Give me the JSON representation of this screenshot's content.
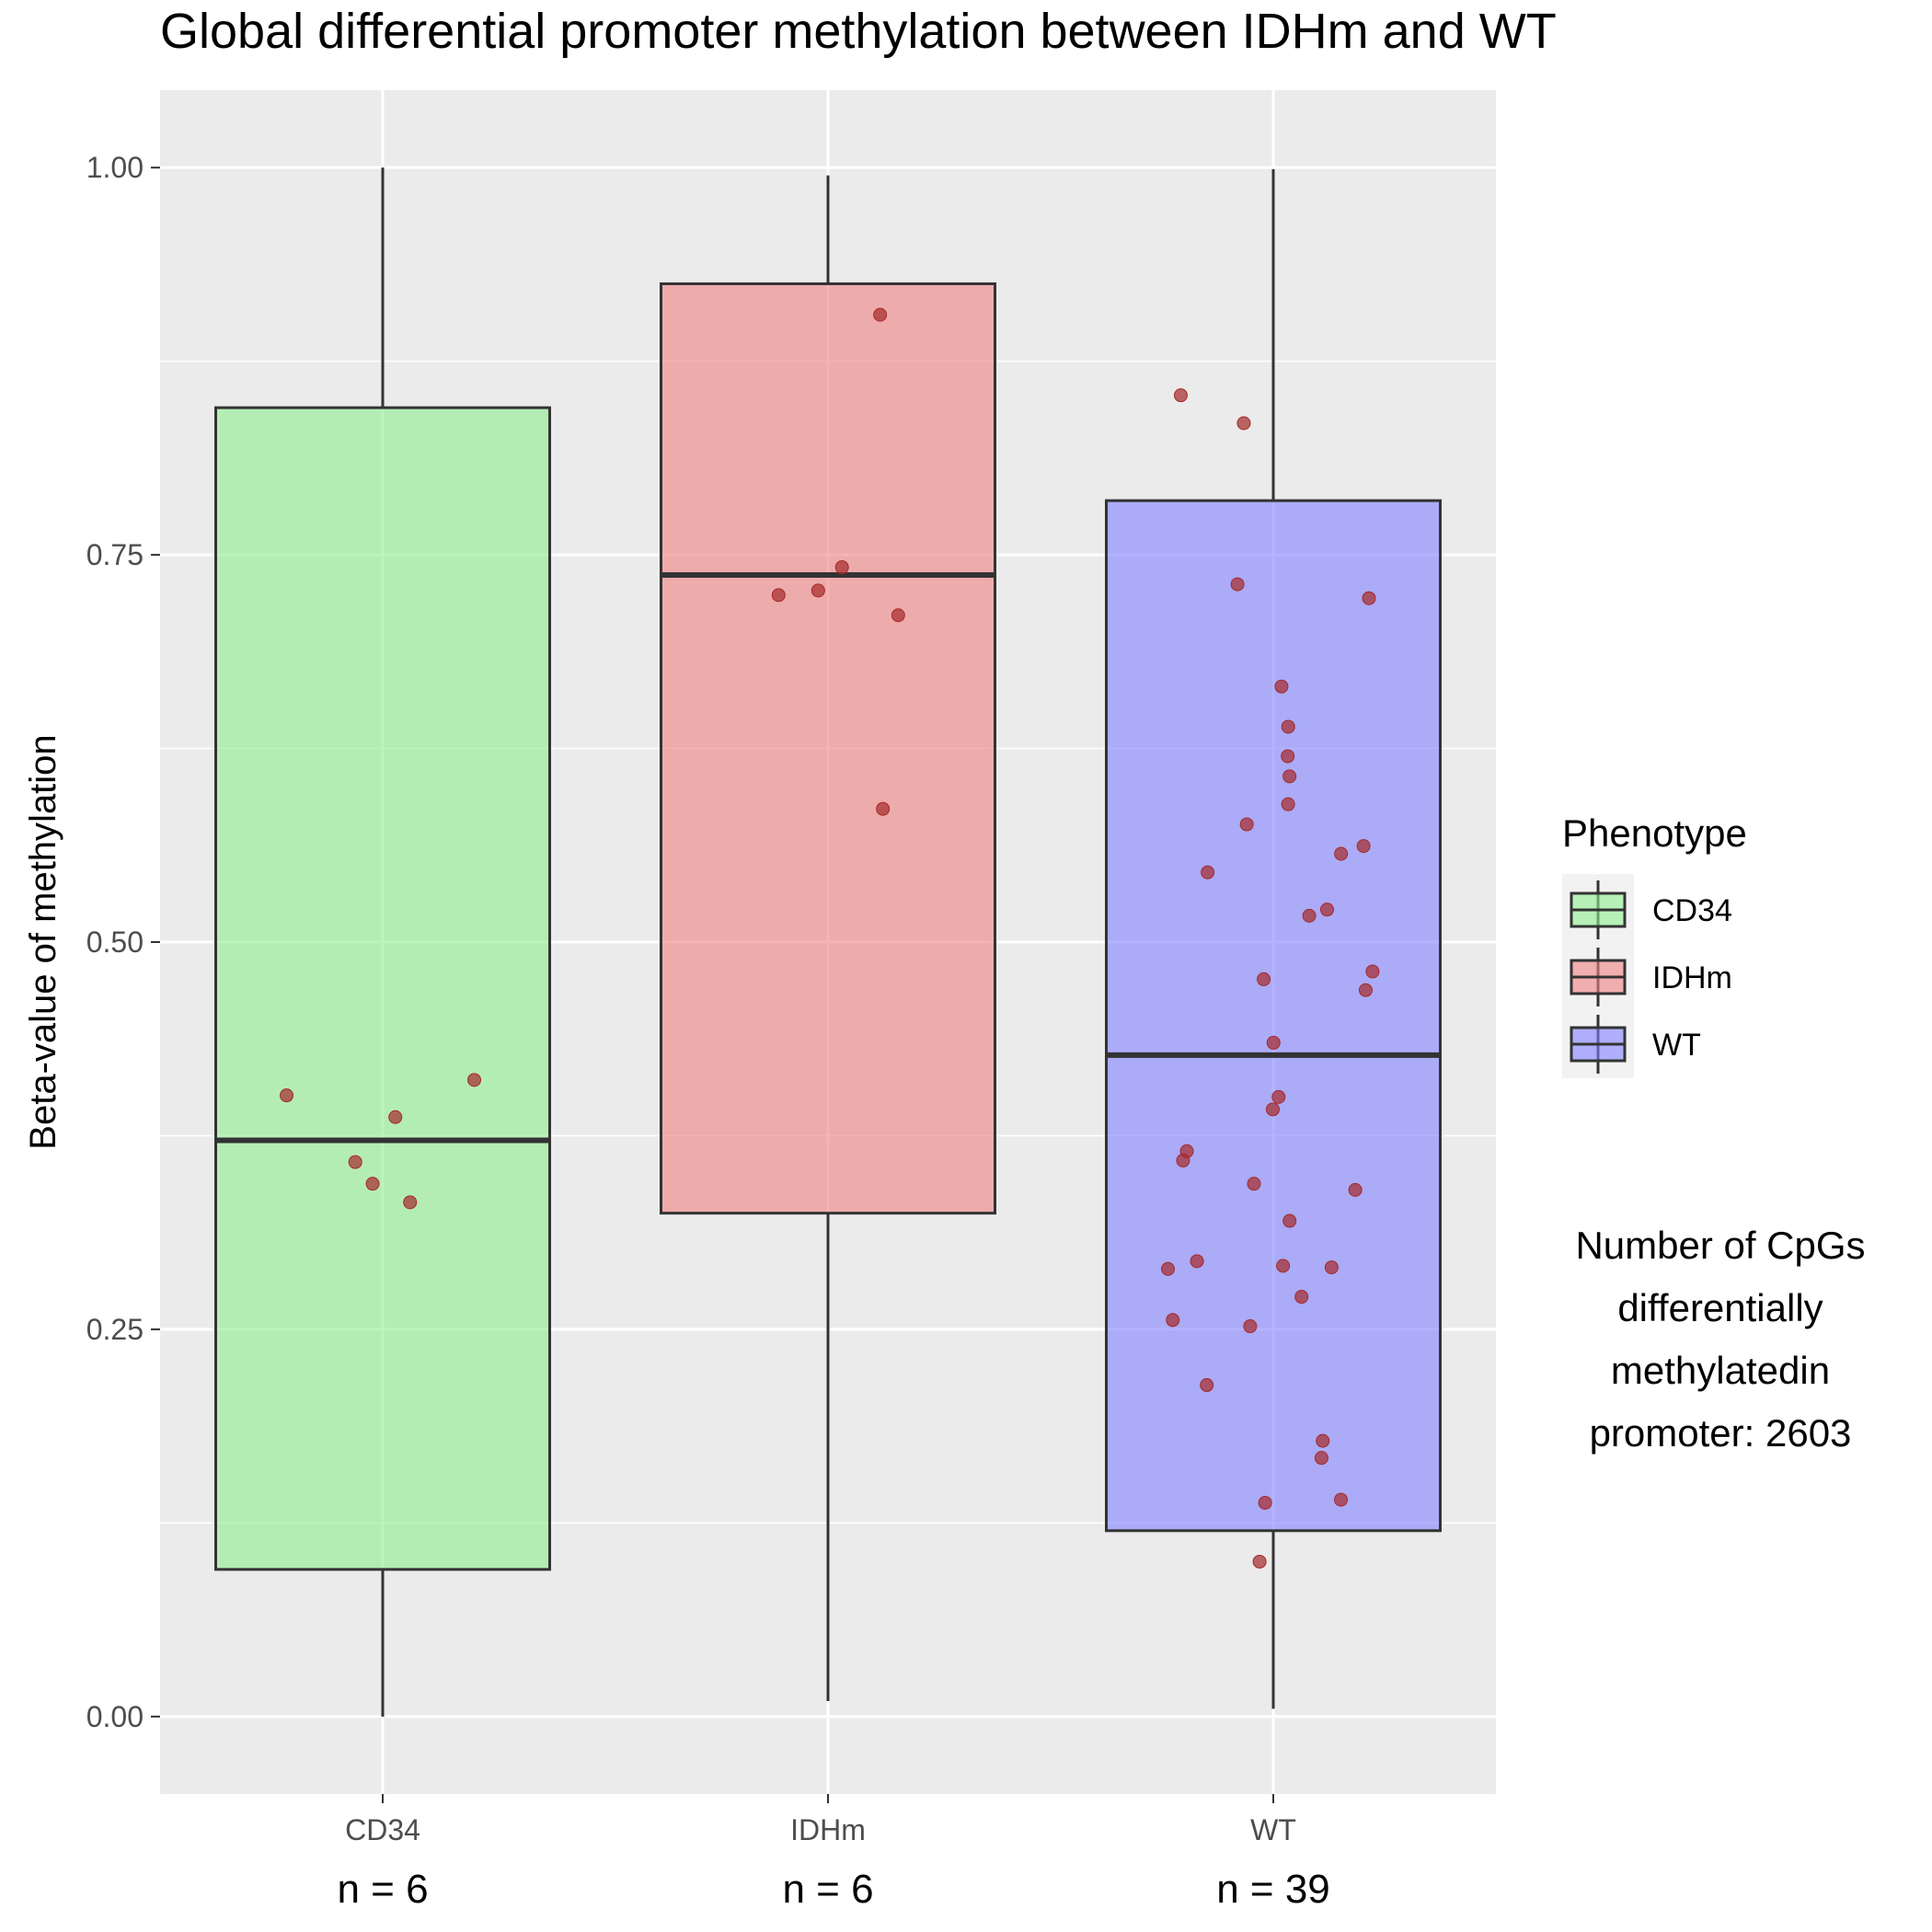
{
  "chart_data": {
    "type": "box",
    "title": "Global differential promoter methylation between IDHm and WT",
    "xlabel": "",
    "ylabel": "Beta-value of methylation",
    "ylim": [
      -0.05,
      1.05
    ],
    "yticks": [
      "0.00",
      "0.25",
      "0.50",
      "0.75",
      "1.00"
    ],
    "ytick_values": [
      0,
      0.25,
      0.5,
      0.75,
      1.0
    ],
    "categories": [
      "CD34",
      "IDHm",
      "WT"
    ],
    "n_labels": [
      "n = 6",
      "n = 6",
      "n = 39"
    ],
    "grid": true,
    "boxes": [
      {
        "name": "CD34",
        "color": "#90EE90",
        "whisker_low": 0.0,
        "q1": 0.095,
        "median": 0.372,
        "q3": 0.845,
        "whisker_high": 1.0
      },
      {
        "name": "IDHm",
        "color": "#F08080",
        "whisker_low": 0.01,
        "q1": 0.325,
        "median": 0.737,
        "q3": 0.925,
        "whisker_high": 0.995
      },
      {
        "name": "WT",
        "color": "#8080FF",
        "whisker_low": 0.005,
        "q1": 0.12,
        "median": 0.427,
        "q3": 0.785,
        "whisker_high": 0.999
      }
    ],
    "points": [
      {
        "group": "CD34",
        "values": [
          0.411,
          0.401,
          0.387,
          0.358,
          0.344,
          0.332
        ]
      },
      {
        "group": "IDHm",
        "values": [
          0.905,
          0.742,
          0.727,
          0.724,
          0.711,
          0.586
        ]
      },
      {
        "group": "WT",
        "values": [
          0.853,
          0.835,
          0.731,
          0.722,
          0.665,
          0.639,
          0.62,
          0.607,
          0.589,
          0.576,
          0.562,
          0.557,
          0.545,
          0.521,
          0.517,
          0.481,
          0.476,
          0.469,
          0.435,
          0.4,
          0.392,
          0.365,
          0.359,
          0.344,
          0.34,
          0.32,
          0.294,
          0.291,
          0.29,
          0.289,
          0.271,
          0.256,
          0.252,
          0.214,
          0.178,
          0.167,
          0.14,
          0.138,
          0.1
        ]
      }
    ],
    "legend": {
      "title": "Phenotype",
      "position": "right",
      "entries": [
        {
          "label": "CD34",
          "color": "#90EE90"
        },
        {
          "label": "IDHm",
          "color": "#F08080"
        },
        {
          "label": "WT",
          "color": "#8080FF"
        }
      ]
    },
    "annotation": [
      "Number of CpGs",
      "differentially",
      "methylatedin",
      "promoter: 2603"
    ]
  },
  "colors": {
    "panel": "#EBEBEB",
    "grid": "#FFFFFF",
    "box_stroke": "#333333",
    "point_fill": "#A52A2A"
  }
}
